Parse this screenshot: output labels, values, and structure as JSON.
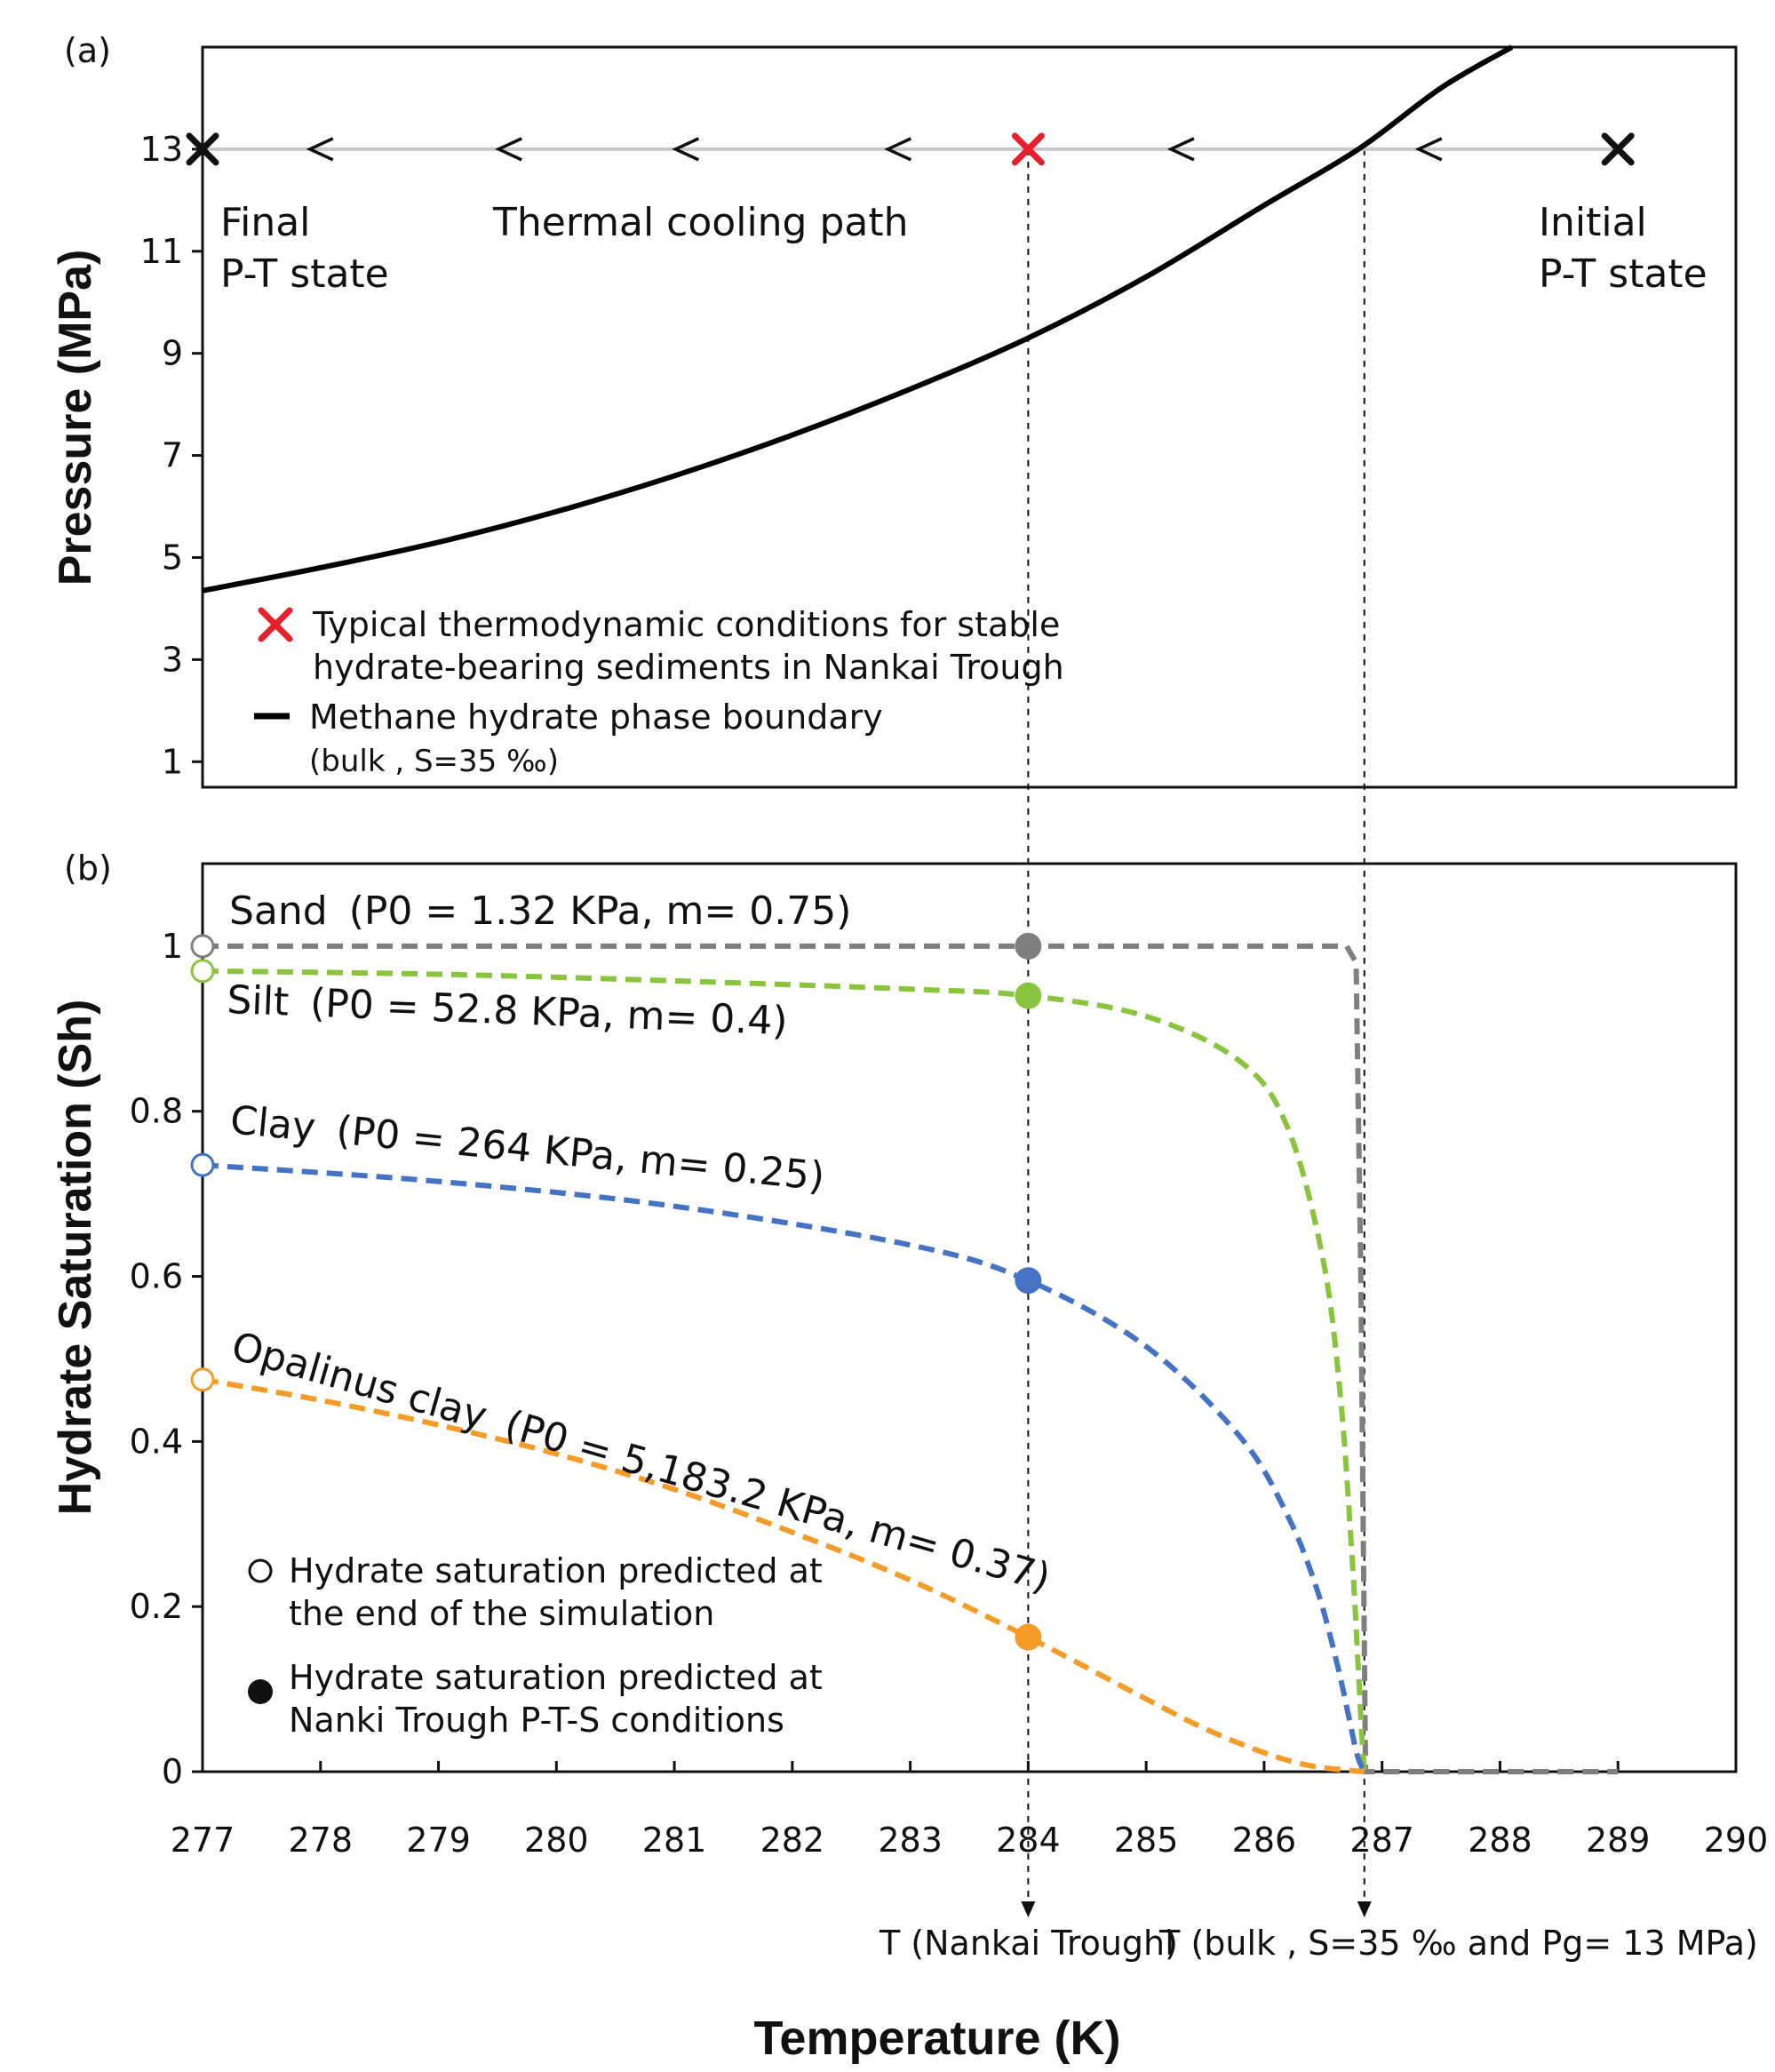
{
  "colors": {
    "sand": "#7f7f7f",
    "silt": "#8ac43f",
    "clay": "#4472c4",
    "opalinus": "#f59b28",
    "red_marker": "#e8202e",
    "boundary": "#000000",
    "path": "#c8c8c8"
  },
  "chart_data": [
    {
      "panel": "(a)",
      "type": "line",
      "ylabel": "Pressure (MPa)",
      "xlim": [
        277,
        290
      ],
      "ylim": [
        0.5,
        15
      ],
      "yticks": [
        1,
        3,
        5,
        7,
        9,
        11,
        13
      ],
      "ytick_labels": [
        "1",
        "3",
        "5",
        "7",
        "9",
        "11",
        "13"
      ],
      "phase_boundary": {
        "name": "Methane hydrate phase boundary",
        "note": "(bulk , S=35 ‰)",
        "x": [
          277,
          278,
          279,
          280,
          281,
          282,
          283,
          284,
          285,
          286,
          286.8,
          287.5,
          288.1
        ],
        "y": [
          4.35,
          4.8,
          5.3,
          5.9,
          6.6,
          7.4,
          8.3,
          9.3,
          10.5,
          11.9,
          13.0,
          14.2,
          15.0
        ]
      },
      "cooling_path": {
        "label": "Thermal cooling path",
        "pressure": 13,
        "x_start": 289,
        "x_end": 277,
        "arrow_x": [
          278,
          279.6,
          281.1,
          282.9,
          285.3,
          287.4
        ]
      },
      "markers": [
        {
          "x": 277,
          "y": 13,
          "kind": "final",
          "label": "Final",
          "label2": "P-T state"
        },
        {
          "x": 284,
          "y": 13,
          "kind": "nankai"
        },
        {
          "x": 289,
          "y": 13,
          "kind": "initial",
          "label": "Initial",
          "label2": "P-T state"
        }
      ],
      "legend": [
        {
          "symbol": "red-x",
          "line1": "Typical thermodynamic conditions for stable",
          "line2": "hydrate-bearing sediments in Nankai Trough"
        },
        {
          "symbol": "black-line",
          "line1": "Methane hydrate phase boundary",
          "line2": "(bulk , S=35 ‰)"
        }
      ]
    },
    {
      "panel": "(b)",
      "type": "line",
      "ylabel": "Hydrate Saturation (Sh)",
      "xlabel": "Temperature (K)",
      "xlim": [
        277,
        290
      ],
      "ylim": [
        0,
        1.1
      ],
      "xticks": [
        277,
        278,
        279,
        280,
        281,
        282,
        283,
        284,
        285,
        286,
        287,
        288,
        289,
        290
      ],
      "xtick_labels": [
        "277",
        "278",
        "279",
        "280",
        "281",
        "282",
        "283",
        "284",
        "285",
        "286",
        "287",
        "288",
        "289",
        "290"
      ],
      "yticks": [
        0,
        0.2,
        0.4,
        0.6,
        0.8,
        1
      ],
      "ytick_labels": [
        "0",
        "0.2",
        "0.4",
        "0.6",
        "0.8",
        "1"
      ],
      "series": [
        {
          "name": "Sand",
          "key": "sand",
          "params": "(P0 = 1.32 KPa, m= 0.75)",
          "x": [
            277,
            280,
            284,
            286.7,
            286.78,
            286.82,
            286.86,
            289
          ],
          "y": [
            1.0,
            1.0,
            1.0,
            1.0,
            0.98,
            0.6,
            0.0,
            0.0
          ],
          "end_point": {
            "x": 277,
            "y": 1.0
          },
          "nankai_point": {
            "x": 284,
            "y": 1.0
          }
        },
        {
          "name": "Silt",
          "key": "silt",
          "params": "(P0 = 52.8 KPa, m= 0.4)",
          "x": [
            277,
            279,
            281,
            283,
            284,
            285,
            285.8,
            286.2,
            286.5,
            286.65,
            286.75,
            286.8,
            286.83,
            286.85
          ],
          "y": [
            0.97,
            0.966,
            0.958,
            0.948,
            0.94,
            0.915,
            0.86,
            0.78,
            0.62,
            0.45,
            0.25,
            0.12,
            0.04,
            0.0
          ],
          "end_point": {
            "x": 277,
            "y": 0.97
          },
          "nankai_point": {
            "x": 284,
            "y": 0.94
          }
        },
        {
          "name": "Clay",
          "key": "clay",
          "params": "(P0 = 264 KPa, m= 0.25)",
          "x": [
            277,
            279,
            281,
            283,
            284,
            285,
            285.8,
            286.2,
            286.45,
            286.62,
            286.72,
            286.78,
            286.82,
            286.85
          ],
          "y": [
            0.735,
            0.715,
            0.685,
            0.638,
            0.595,
            0.515,
            0.405,
            0.31,
            0.22,
            0.13,
            0.065,
            0.025,
            0.008,
            0.0
          ],
          "end_point": {
            "x": 277,
            "y": 0.735
          },
          "nankai_point": {
            "x": 284,
            "y": 0.595
          }
        },
        {
          "name": "Opalinus clay",
          "key": "opalinus",
          "params": "(P0 = 5,183.2 KPa, m= 0.37)",
          "x": [
            277,
            278,
            279,
            280,
            281,
            282,
            283,
            284,
            285,
            285.5,
            286,
            286.4,
            286.85
          ],
          "y": [
            0.475,
            0.45,
            0.42,
            0.385,
            0.342,
            0.29,
            0.232,
            0.163,
            0.088,
            0.052,
            0.023,
            0.007,
            0.0
          ],
          "end_point": {
            "x": 277,
            "y": 0.475
          },
          "nankai_point": {
            "x": 284,
            "y": 0.163
          }
        }
      ],
      "legend": [
        {
          "symbol": "open-circle",
          "line1": "Hydrate saturation predicted at",
          "line2": "the end of the simulation"
        },
        {
          "symbol": "filled-circle",
          "line1": "Hydrate saturation predicted at",
          "line2": "Nanki Trough P-T-S conditions"
        }
      ],
      "vertical_markers": [
        {
          "x": 284,
          "label": "T (Nankai Trough)"
        },
        {
          "x": 286.85,
          "label": "T (bulk , S=35 ‰ and Pg= 13 MPa)"
        }
      ]
    }
  ],
  "labels": {
    "panel_a": "(a)",
    "panel_b": "(b)",
    "ylabel_a": "Pressure (MPa)",
    "ylabel_b": "Hydrate Saturation (Sh)",
    "xlabel": "Temperature (K)",
    "final_1": "Final",
    "final_2": "P-T state",
    "initial_1": "Initial",
    "initial_2": "P-T state",
    "cooling": "Thermal cooling path",
    "sand": "Sand",
    "sand_params": "(P0 = 1.32 KPa, m= 0.75)",
    "silt": "Silt",
    "silt_params": "(P0 = 52.8 KPa, m= 0.4)",
    "clay": "Clay",
    "clay_params": "(P0 = 264 KPa, m= 0.25)",
    "opalinus": "Opalinus clay",
    "opalinus_params": "(P0 = 5,183.2 KPa, m= 0.37)",
    "legend_a1_l1": "Typical thermodynamic conditions for stable",
    "legend_a1_l2": "hydrate-bearing sediments in Nankai Trough",
    "legend_a2_l1": "Methane hydrate phase boundary",
    "legend_a2_l2": "(bulk , S=35 ‰)",
    "legend_b1_l1": "Hydrate saturation predicted at",
    "legend_b1_l2": "the end of the simulation",
    "legend_b2_l1": "Hydrate saturation predicted at",
    "legend_b2_l2": "Nanki Trough P-T-S conditions",
    "vmark_1": "T (Nankai Trough)",
    "vmark_2": "T (bulk , S=35 ‰ and Pg= 13 MPa)"
  }
}
